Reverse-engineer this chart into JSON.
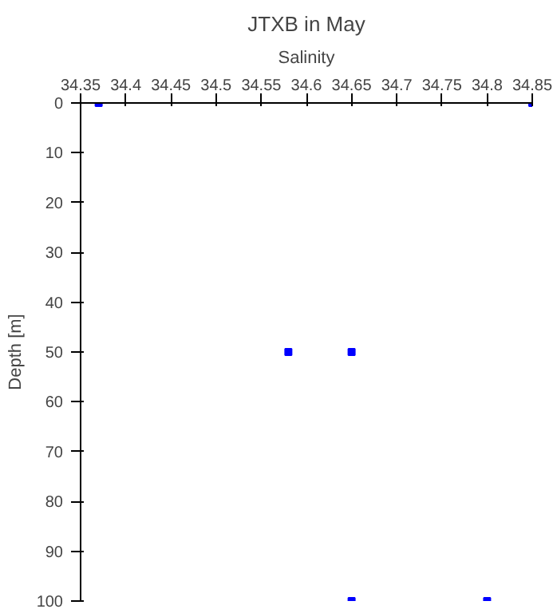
{
  "chart_data": {
    "type": "scatter",
    "title": "JTXB in May",
    "xlabel": "Salinity",
    "ylabel": "Depth [m]",
    "x": [
      34.37,
      34.85,
      34.58,
      34.65,
      34.65,
      34.8
    ],
    "series": [
      {
        "color": "#0000ff",
        "values": [
          0,
          0,
          50,
          50,
          100,
          100
        ]
      }
    ],
    "xlim": [
      34.35,
      34.85
    ],
    "xticks": [
      34.35,
      34.4,
      34.45,
      34.5,
      34.55,
      34.6,
      34.65,
      34.7,
      34.75,
      34.8,
      34.85
    ],
    "ylim": [
      100,
      0
    ],
    "yticks": [
      0,
      10,
      20,
      30,
      40,
      50,
      60,
      70,
      80,
      90,
      100
    ],
    "grid": false,
    "marker": "square"
  }
}
